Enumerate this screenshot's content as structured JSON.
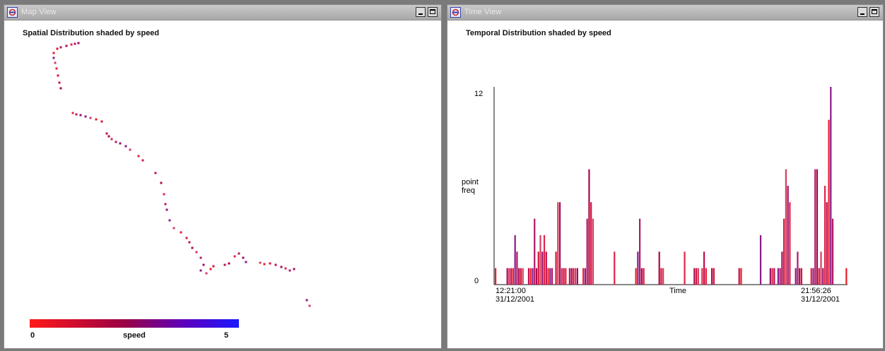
{
  "map_window": {
    "title": "Map View",
    "heading": "Spatial Distribution shaded by speed",
    "legend": {
      "min": "0",
      "label": "speed",
      "max": "5"
    },
    "points": [
      [
        70,
        68
      ],
      [
        75,
        62
      ],
      [
        80,
        60
      ],
      [
        88,
        58
      ],
      [
        95,
        56
      ],
      [
        100,
        55
      ],
      [
        105,
        54
      ],
      [
        70,
        75
      ],
      [
        72,
        82
      ],
      [
        74,
        90
      ],
      [
        76,
        100
      ],
      [
        78,
        110
      ],
      [
        80,
        118
      ],
      [
        97,
        153
      ],
      [
        102,
        155
      ],
      [
        108,
        156
      ],
      [
        115,
        158
      ],
      [
        122,
        160
      ],
      [
        130,
        162
      ],
      [
        138,
        165
      ],
      [
        145,
        182
      ],
      [
        148,
        186
      ],
      [
        152,
        190
      ],
      [
        158,
        194
      ],
      [
        164,
        196
      ],
      [
        172,
        200
      ],
      [
        178,
        205
      ],
      [
        190,
        214
      ],
      [
        196,
        220
      ],
      [
        214,
        238
      ],
      [
        222,
        252
      ],
      [
        226,
        268
      ],
      [
        228,
        282
      ],
      [
        230,
        290
      ],
      [
        234,
        305
      ],
      [
        240,
        316
      ],
      [
        250,
        322
      ],
      [
        258,
        330
      ],
      [
        262,
        336
      ],
      [
        266,
        344
      ],
      [
        272,
        350
      ],
      [
        278,
        358
      ],
      [
        282,
        368
      ],
      [
        278,
        376
      ],
      [
        286,
        380
      ],
      [
        292,
        374
      ],
      [
        296,
        370
      ],
      [
        312,
        368
      ],
      [
        318,
        366
      ],
      [
        326,
        356
      ],
      [
        332,
        352
      ],
      [
        338,
        358
      ],
      [
        342,
        364
      ],
      [
        362,
        365
      ],
      [
        368,
        367
      ],
      [
        376,
        366
      ],
      [
        384,
        368
      ],
      [
        392,
        371
      ],
      [
        398,
        373
      ],
      [
        404,
        376
      ],
      [
        410,
        374
      ],
      [
        428,
        418
      ],
      [
        432,
        426
      ]
    ]
  },
  "time_window": {
    "title": "Time View",
    "heading": "Temporal Distribution shaded by speed",
    "y_tick_top": "12",
    "y_tick_bottom": "0",
    "y_label_line1": "point",
    "y_label_line2": "freq",
    "x_label": "Time",
    "x_start_time": "12:21:00",
    "x_start_date": "31/12/2001",
    "x_end_time": "21:56:26",
    "x_end_date": "31/12/2001"
  },
  "chart_data": {
    "type": "bar",
    "title": "Temporal Distribution shaded by speed",
    "xlabel": "Time",
    "ylabel": "point freq",
    "ylim": [
      0,
      12
    ],
    "x_range": [
      "12:21:00 31/12/2001",
      "21:56:26 31/12/2001"
    ],
    "legend": "speed 0 (#ff1a1a) to 5 (#1a1aff)",
    "values": [
      1,
      0,
      0,
      0,
      0,
      0,
      1,
      1,
      1,
      1,
      3,
      2,
      1,
      1,
      1,
      0,
      0,
      1,
      1,
      1,
      4,
      1,
      2,
      3,
      2,
      3,
      2,
      1,
      1,
      1,
      0,
      2,
      5,
      5,
      1,
      1,
      1,
      0,
      1,
      1,
      1,
      1,
      1,
      0,
      0,
      1,
      1,
      4,
      7,
      5,
      4,
      0,
      0,
      0,
      0,
      0,
      0,
      0,
      0,
      0,
      0,
      2,
      0,
      0,
      0,
      0,
      0,
      0,
      0,
      0,
      0,
      0,
      1,
      2,
      4,
      1,
      1,
      0,
      0,
      0,
      0,
      0,
      0,
      0,
      2,
      1,
      1,
      0,
      0,
      0,
      0,
      0,
      0,
      0,
      0,
      0,
      0,
      2,
      0,
      0,
      0,
      0,
      1,
      1,
      1,
      0,
      1,
      2,
      1,
      0,
      0,
      1,
      1,
      0,
      0,
      0,
      0,
      0,
      0,
      0,
      0,
      0,
      0,
      0,
      0,
      1,
      1,
      0,
      0,
      0,
      0,
      0,
      0,
      0,
      0,
      0,
      3,
      0,
      0,
      0,
      0,
      1,
      1,
      1,
      0,
      1,
      1,
      2,
      4,
      7,
      6,
      5,
      0,
      0,
      1,
      2,
      1,
      1,
      0,
      0,
      0,
      0,
      1,
      1,
      7,
      7,
      1,
      2,
      1,
      6,
      5,
      10,
      12,
      4,
      0,
      0,
      0,
      0,
      0,
      0,
      1
    ]
  }
}
